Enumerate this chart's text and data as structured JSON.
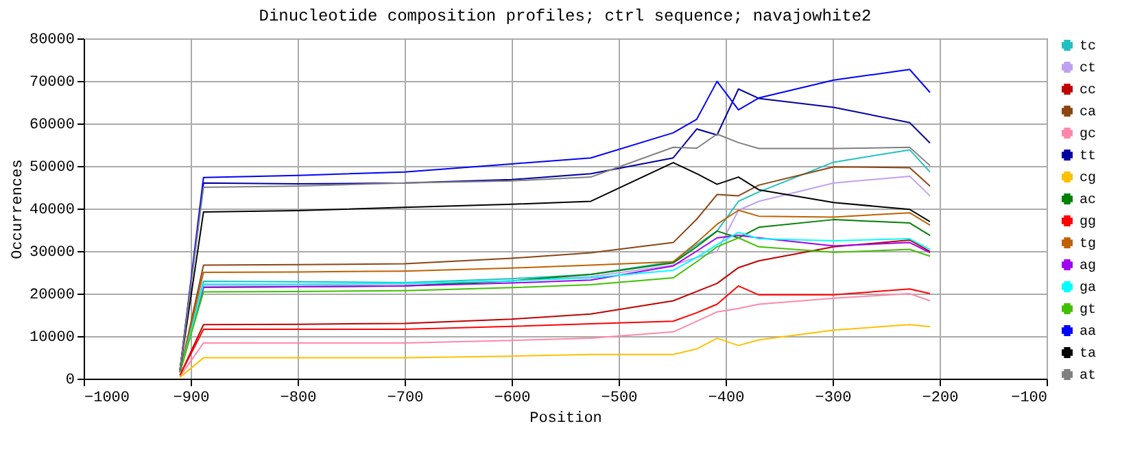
{
  "chart_data": {
    "type": "line",
    "title": "Dinucleotide composition profiles; ctrl sequence; navajowhite2",
    "xlabel": "Position",
    "ylabel": "Occurrences",
    "x": [
      -910,
      -888,
      -800,
      -700,
      -600,
      -526,
      -449,
      -427,
      -408,
      -388,
      -369,
      -299,
      -228,
      -209
    ],
    "xlim": [
      -1000,
      -100
    ],
    "xticks": [
      -1000,
      -900,
      -800,
      -700,
      -600,
      -500,
      -400,
      -300,
      -200,
      -100
    ],
    "ylim": [
      0,
      80000
    ],
    "yticks": [
      0,
      10000,
      20000,
      30000,
      40000,
      50000,
      60000,
      70000,
      80000
    ],
    "grid": true,
    "legend": "right",
    "line_style": "solid",
    "series": [
      {
        "name": "tc",
        "color": "#20c0c0",
        "values": [
          1500,
          22900,
          22800,
          22600,
          23500,
          24500,
          27500,
          31500,
          34700,
          41700,
          43900,
          50900,
          53800,
          48600
        ]
      },
      {
        "name": "ct",
        "color": "#c0a0f0",
        "values": [
          1500,
          22000,
          22000,
          22300,
          23000,
          24000,
          26700,
          28500,
          29900,
          39600,
          41700,
          46000,
          47600,
          43000
        ]
      },
      {
        "name": "cc",
        "color": "#c00000",
        "values": [
          800,
          12700,
          12800,
          13000,
          14000,
          15200,
          18300,
          20500,
          22400,
          26100,
          27700,
          31000,
          32600,
          29900
        ]
      },
      {
        "name": "ca",
        "color": "#8b4513",
        "values": [
          1500,
          26700,
          26800,
          27000,
          28300,
          29600,
          32000,
          37500,
          43300,
          43000,
          45500,
          49800,
          49600,
          45300
        ]
      },
      {
        "name": "gc",
        "color": "#ff88aa",
        "values": [
          500,
          8400,
          8400,
          8400,
          9000,
          9500,
          11000,
          13500,
          15700,
          16500,
          17500,
          18900,
          20000,
          18300
        ]
      },
      {
        "name": "tt",
        "color": "#0000a0",
        "values": [
          2000,
          46000,
          45800,
          46000,
          46800,
          48200,
          51900,
          58700,
          57300,
          68100,
          65900,
          63800,
          60200,
          55400
        ]
      },
      {
        "name": "cg",
        "color": "#ffc000",
        "values": [
          300,
          4900,
          4900,
          4900,
          5300,
          5700,
          5700,
          7000,
          9500,
          7800,
          9100,
          11400,
          12700,
          12200
        ]
      },
      {
        "name": "ac",
        "color": "#008000",
        "values": [
          1500,
          21500,
          21600,
          21800,
          23000,
          24500,
          27200,
          31000,
          34700,
          33100,
          35600,
          37400,
          36600,
          33700
        ]
      },
      {
        "name": "gg",
        "color": "#ff0000",
        "values": [
          800,
          11600,
          11600,
          11600,
          12300,
          12900,
          13500,
          15500,
          17500,
          21800,
          19700,
          19700,
          21100,
          20000
        ]
      },
      {
        "name": "tg",
        "color": "#c06000",
        "values": [
          1500,
          25000,
          25100,
          25300,
          26000,
          26700,
          27500,
          32000,
          36300,
          39600,
          38200,
          38000,
          39000,
          36100
        ]
      },
      {
        "name": "ag",
        "color": "#a000f0",
        "values": [
          1500,
          21500,
          21600,
          21800,
          22500,
          23200,
          26500,
          30000,
          33100,
          33700,
          33100,
          31200,
          32000,
          29600
        ]
      },
      {
        "name": "ga",
        "color": "#00ffff",
        "values": [
          1500,
          22200,
          22200,
          22400,
          23000,
          23700,
          25500,
          28500,
          31500,
          34400,
          32900,
          32400,
          32900,
          30400
        ]
      },
      {
        "name": "gt",
        "color": "#40c000",
        "values": [
          1500,
          20400,
          20500,
          20700,
          21400,
          22100,
          23700,
          27500,
          31000,
          33100,
          31000,
          29700,
          30400,
          28800
        ]
      },
      {
        "name": "aa",
        "color": "#0000ff",
        "values": [
          2000,
          47300,
          47800,
          48600,
          50500,
          51900,
          57800,
          61000,
          69900,
          63200,
          66000,
          70200,
          72700,
          67300
        ]
      },
      {
        "name": "ta",
        "color": "#000000",
        "values": [
          2000,
          39200,
          39500,
          40300,
          41000,
          41700,
          50800,
          48200,
          45700,
          47400,
          44400,
          41400,
          39800,
          36900
        ]
      },
      {
        "name": "at",
        "color": "#808080",
        "values": [
          2000,
          45000,
          45300,
          46000,
          46500,
          47400,
          54400,
          54200,
          57500,
          55500,
          54100,
          54100,
          54400,
          50100
        ]
      }
    ]
  }
}
